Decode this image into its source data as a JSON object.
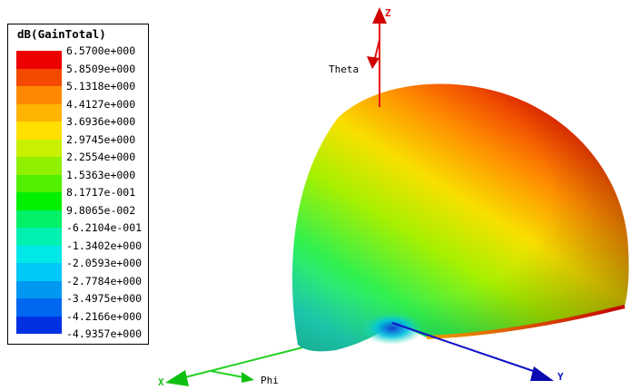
{
  "legend": {
    "title": "dB(GainTotal)",
    "ticks": [
      "6.5700e+000",
      "5.8509e+000",
      "5.1318e+000",
      "4.4127e+000",
      "3.6936e+000",
      "2.9745e+000",
      "2.2554e+000",
      "1.5363e+000",
      "8.1717e-001",
      "9.8065e-002",
      "-6.2104e-001",
      "-1.3402e+000",
      "-2.0593e+000",
      "-2.7784e+000",
      "-3.4975e+000",
      "-4.2166e+000",
      "-4.9357e+000"
    ],
    "colors": [
      "#ee0000",
      "#f44a00",
      "#ff8800",
      "#ffb400",
      "#ffe000",
      "#c8f000",
      "#90f000",
      "#50f000",
      "#00f000",
      "#00f068",
      "#00f0b0",
      "#00e8e8",
      "#00c8f8",
      "#0098f0",
      "#0068f0",
      "#0030e0"
    ]
  },
  "axes": {
    "z": {
      "label": "Z",
      "color": "#e81010"
    },
    "x": {
      "label": "X",
      "color": "#20d020"
    },
    "y": {
      "label": "Y",
      "color": "#1010c8"
    }
  },
  "angles": {
    "theta": "Theta",
    "phi": "Phi"
  }
}
